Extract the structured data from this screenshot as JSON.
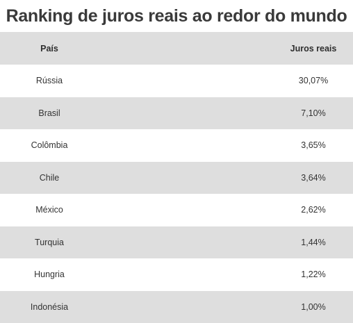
{
  "title": "Ranking de juros reais ao redor do mundo",
  "header": {
    "country": "País",
    "rate": "Juros reais"
  },
  "rows": [
    {
      "country": "Rússia",
      "rate": "30,07%"
    },
    {
      "country": "Brasil",
      "rate": "7,10%"
    },
    {
      "country": "Colômbia",
      "rate": "3,65%"
    },
    {
      "country": "Chile",
      "rate": "3,64%"
    },
    {
      "country": "México",
      "rate": "2,62%"
    },
    {
      "country": "Turquia",
      "rate": "1,44%"
    },
    {
      "country": "Hungria",
      "rate": "1,22%"
    },
    {
      "country": "Indonésia",
      "rate": "1,00%"
    }
  ],
  "colors": {
    "shaded_row": "#dedede",
    "plain_row": "#ffffff",
    "text": "#333333"
  },
  "chart_data": {
    "type": "table",
    "title": "Ranking de juros reais ao redor do mundo",
    "columns": [
      "País",
      "Juros reais"
    ],
    "categories": [
      "Rússia",
      "Brasil",
      "Colômbia",
      "Chile",
      "México",
      "Turquia",
      "Hungria",
      "Indonésia"
    ],
    "series": [
      {
        "name": "Juros reais",
        "values": [
          30.07,
          7.1,
          3.65,
          3.64,
          2.62,
          1.44,
          1.22,
          1.0
        ]
      }
    ]
  }
}
